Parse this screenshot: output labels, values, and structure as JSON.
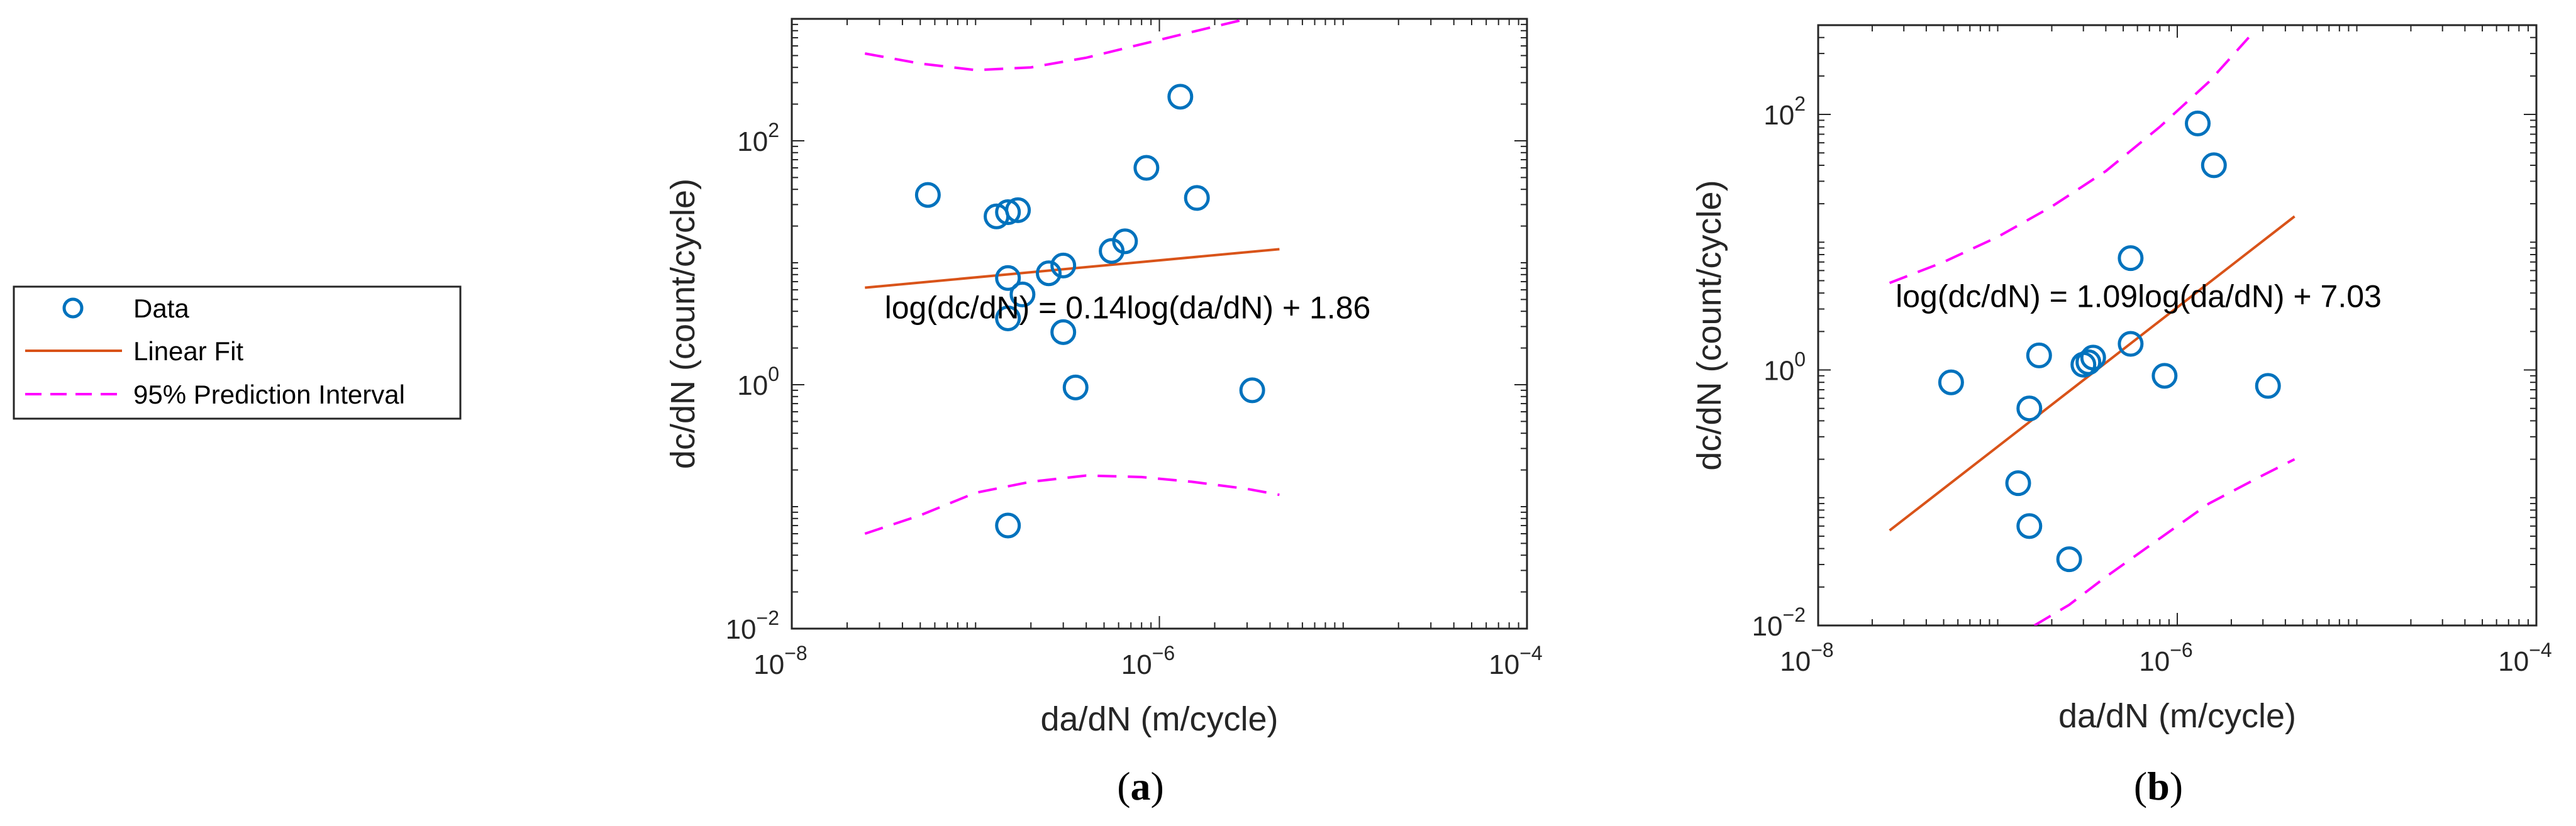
{
  "legend": {
    "items": [
      {
        "label": "Data",
        "kind": "marker"
      },
      {
        "label": "Linear Fit",
        "kind": "line"
      },
      {
        "label": "95% Prediction Interval",
        "kind": "dashed"
      }
    ]
  },
  "colors": {
    "data": "#0072BD",
    "fit": "#D95319",
    "interval": "#FF00FF",
    "axis": "#262626"
  },
  "chart_data": [
    {
      "type": "scatter",
      "panel_label_text": "a",
      "xlabel": "da/dN (m/cycle)",
      "ylabel": "dc/dN (count/cycle)",
      "xscale": "log",
      "yscale": "log",
      "xlim": [
        1e-08,
        0.0001
      ],
      "ylim": [
        0.01,
        1000
      ],
      "xticks": [
        {
          "base": "10",
          "exp": "−8",
          "value": 1e-08
        },
        {
          "base": "10",
          "exp": "−6",
          "value": 1e-06
        },
        {
          "base": "10",
          "exp": "−4",
          "value": 0.0001
        }
      ],
      "yticks": [
        {
          "base": "10",
          "exp": "−2",
          "value": 0.01
        },
        {
          "base": "10",
          "exp": "0",
          "value": 1
        },
        {
          "base": "10",
          "exp": "2",
          "value": 100
        }
      ],
      "annotation": "log(dc/dN) = 0.14log(da/dN) + 1.86",
      "annotation_anchor": {
        "x": 3.2e-08,
        "y": 3.5
      },
      "fit": {
        "slope": 0.14,
        "intercept": 1.86,
        "x_range": [
          2.5e-08,
          4.5e-06
        ]
      },
      "interval_upper": [
        [
          2.5e-08,
          520
        ],
        [
          5e-08,
          430
        ],
        [
          1e-07,
          380
        ],
        [
          2e-07,
          400
        ],
        [
          4e-07,
          480
        ],
        [
          8e-07,
          620
        ],
        [
          1.5e-06,
          780
        ],
        [
          3e-06,
          1000
        ]
      ],
      "interval_lower": [
        [
          2.5e-08,
          0.06
        ],
        [
          5e-08,
          0.085
        ],
        [
          1e-07,
          0.13
        ],
        [
          2e-07,
          0.16
        ],
        [
          4e-07,
          0.18
        ],
        [
          8e-07,
          0.175
        ],
        [
          1.5e-06,
          0.16
        ],
        [
          3e-06,
          0.14
        ],
        [
          4.5e-06,
          0.125
        ]
      ],
      "points": [
        {
          "x": 5.5e-08,
          "y": 36
        },
        {
          "x": 1.3e-07,
          "y": 24
        },
        {
          "x": 1.5e-07,
          "y": 26
        },
        {
          "x": 1.7e-07,
          "y": 27
        },
        {
          "x": 1.5e-07,
          "y": 7.5
        },
        {
          "x": 1.5e-07,
          "y": 3.5
        },
        {
          "x": 1.8e-07,
          "y": 5.5
        },
        {
          "x": 2.5e-07,
          "y": 8.2
        },
        {
          "x": 3e-07,
          "y": 9.5
        },
        {
          "x": 3e-07,
          "y": 2.7
        },
        {
          "x": 3.5e-07,
          "y": 0.95
        },
        {
          "x": 5.5e-07,
          "y": 12.5
        },
        {
          "x": 6.5e-07,
          "y": 15
        },
        {
          "x": 8.5e-07,
          "y": 60
        },
        {
          "x": 1.3e-06,
          "y": 230
        },
        {
          "x": 1.6e-06,
          "y": 34
        },
        {
          "x": 3.2e-06,
          "y": 0.9
        },
        {
          "x": 1.5e-07,
          "y": 0.07
        }
      ]
    },
    {
      "type": "scatter",
      "panel_label_text": "b",
      "xlabel": "da/dN (m/cycle)",
      "ylabel": "dc/dN (count/cycle)",
      "xscale": "log",
      "yscale": "log",
      "xlim": [
        1e-08,
        0.0001
      ],
      "ylim": [
        0.01,
        500
      ],
      "xticks": [
        {
          "base": "10",
          "exp": "−8",
          "value": 1e-08
        },
        {
          "base": "10",
          "exp": "−6",
          "value": 1e-06
        },
        {
          "base": "10",
          "exp": "−4",
          "value": 0.0001
        }
      ],
      "yticks": [
        {
          "base": "10",
          "exp": "−2",
          "value": 0.01
        },
        {
          "base": "10",
          "exp": "0",
          "value": 1
        },
        {
          "base": "10",
          "exp": "2",
          "value": 100
        }
      ],
      "annotation": "log(dc/dN) = 1.09log(da/dN) + 7.03",
      "annotation_anchor": {
        "x": 2.7e-08,
        "y": 3.1
      },
      "fit": {
        "slope": 1.09,
        "intercept": 7.03,
        "x_range": [
          2.5e-08,
          4.5e-06
        ]
      },
      "interval_upper": [
        [
          2.5e-08,
          4.8
        ],
        [
          5e-08,
          7
        ],
        [
          1e-07,
          11
        ],
        [
          2e-07,
          19
        ],
        [
          4e-07,
          36
        ],
        [
          8e-07,
          80
        ],
        [
          1.5e-06,
          180
        ],
        [
          2.5e-06,
          400
        ]
      ],
      "interval_lower": [
        [
          1.6e-07,
          0.01
        ],
        [
          2.5e-07,
          0.0145
        ],
        [
          4e-07,
          0.024
        ],
        [
          8e-07,
          0.048
        ],
        [
          1.5e-06,
          0.09
        ],
        [
          3e-06,
          0.15
        ],
        [
          4.5e-06,
          0.2
        ]
      ],
      "points": [
        {
          "x": 5.5e-08,
          "y": 0.8
        },
        {
          "x": 1.3e-07,
          "y": 0.13
        },
        {
          "x": 1.5e-07,
          "y": 0.5
        },
        {
          "x": 1.5e-07,
          "y": 0.06
        },
        {
          "x": 1.7e-07,
          "y": 1.3
        },
        {
          "x": 2.5e-07,
          "y": 0.033
        },
        {
          "x": 3e-07,
          "y": 1.1
        },
        {
          "x": 3.2e-07,
          "y": 1.15
        },
        {
          "x": 3.4e-07,
          "y": 1.25
        },
        {
          "x": 5.5e-07,
          "y": 1.6
        },
        {
          "x": 5.5e-07,
          "y": 7.5
        },
        {
          "x": 8.5e-07,
          "y": 0.9
        },
        {
          "x": 1.3e-06,
          "y": 85
        },
        {
          "x": 1.6e-06,
          "y": 40
        },
        {
          "x": 3.2e-06,
          "y": 0.75
        }
      ]
    }
  ]
}
